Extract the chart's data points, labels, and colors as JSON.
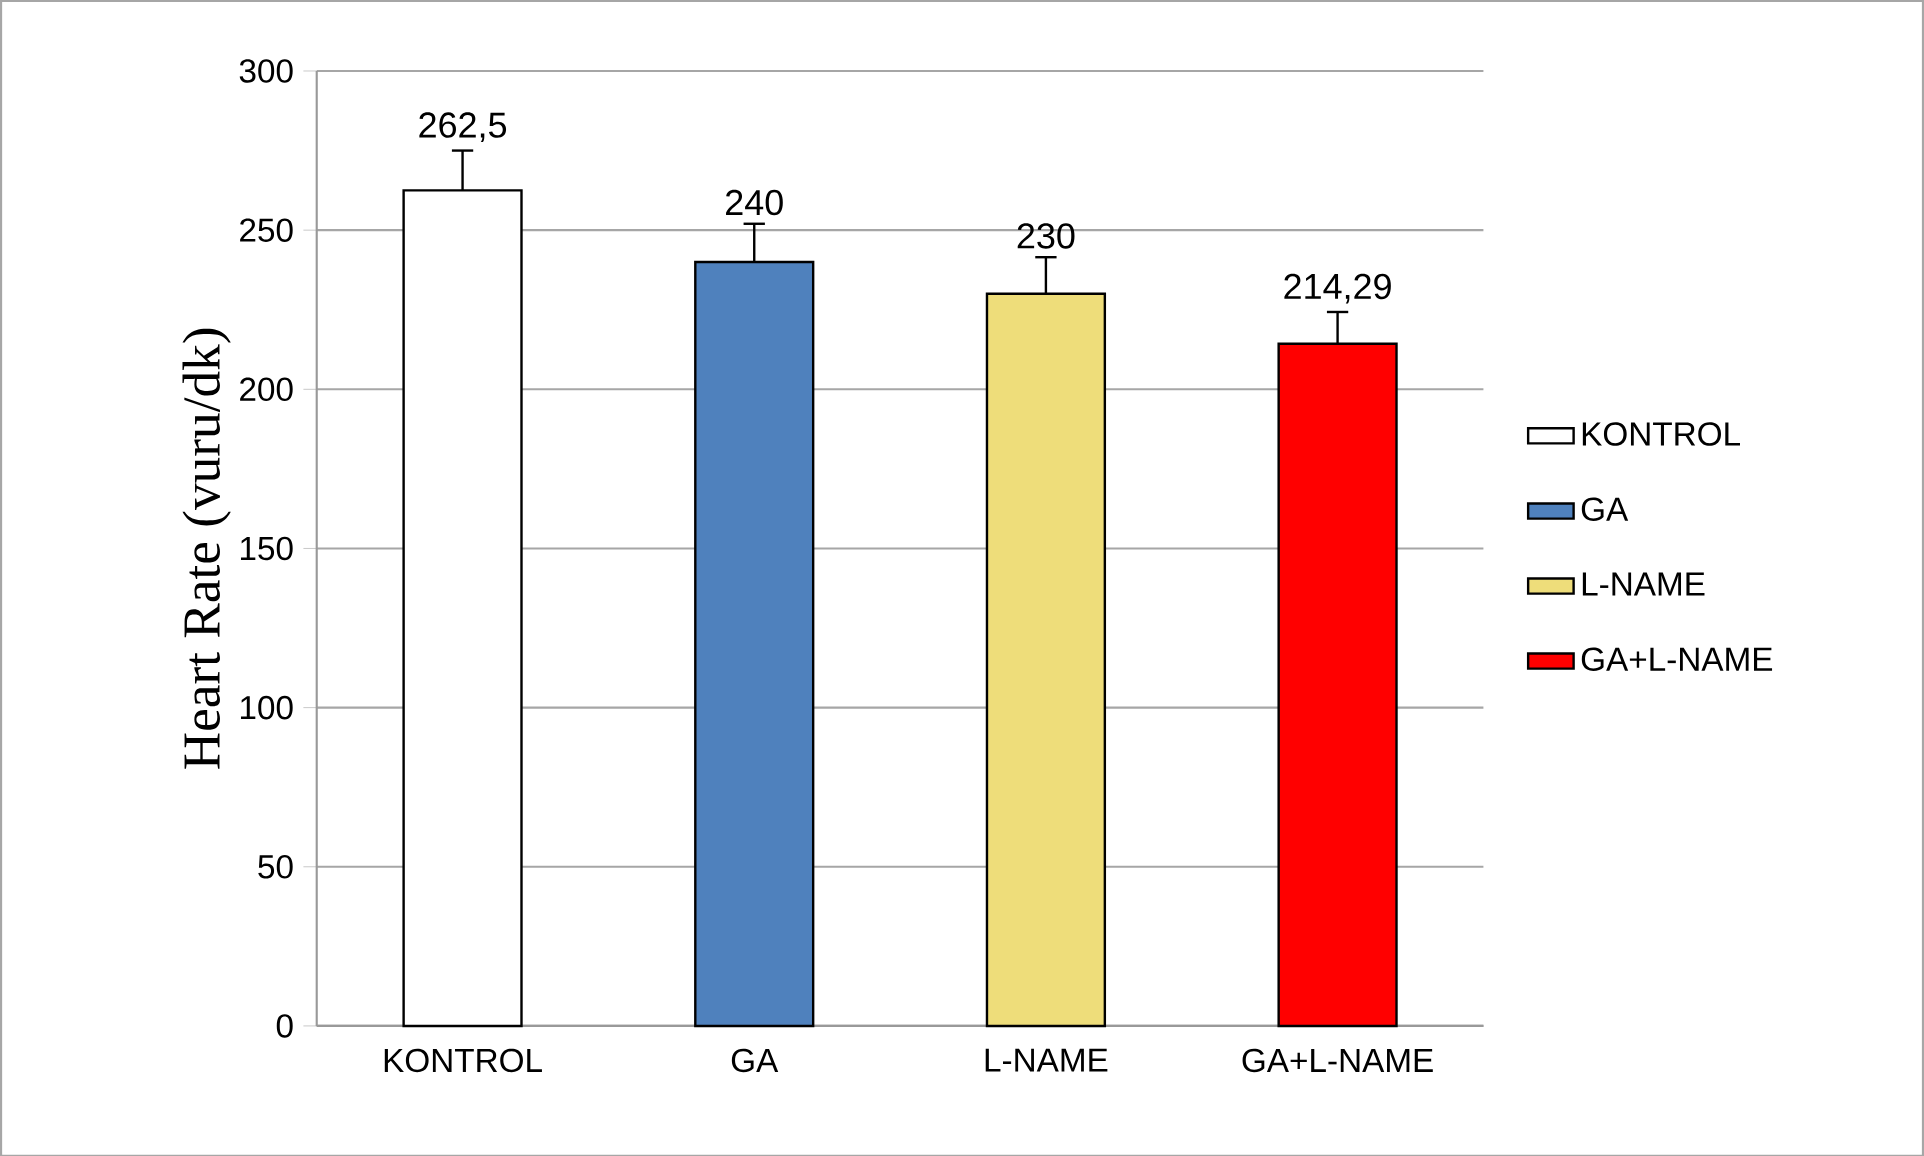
{
  "chart_data": {
    "type": "bar",
    "ylabel": "Heart Rate (vuru/dk)",
    "categories": [
      "KONTROL",
      "GA",
      "L-NAME",
      "GA+L-NAME"
    ],
    "series": [
      {
        "name": "KONTROL",
        "color": "#ffffff",
        "values": [
          262.5,
          null,
          null,
          null
        ],
        "errors": [
          12.5,
          null,
          null,
          null
        ],
        "value_labels": [
          "262,5",
          null,
          null,
          null
        ]
      },
      {
        "name": "GA",
        "color": "#4f81bd",
        "values": [
          null,
          240,
          null,
          null
        ],
        "errors": [
          null,
          12,
          null,
          null
        ],
        "value_labels": [
          null,
          "240",
          null,
          null
        ]
      },
      {
        "name": "L-NAME",
        "color": "#eedd7a",
        "values": [
          null,
          null,
          230,
          null
        ],
        "errors": [
          null,
          null,
          11.5,
          null
        ],
        "value_labels": [
          null,
          null,
          "230",
          null
        ]
      },
      {
        "name": "GA+L-NAME",
        "color": "#ff0000",
        "values": [
          null,
          null,
          null,
          214.29
        ],
        "errors": [
          null,
          null,
          null,
          10
        ],
        "value_labels": [
          null,
          null,
          null,
          "214,29"
        ]
      }
    ],
    "ylim": [
      0,
      300
    ],
    "yticks": [
      0,
      50,
      100,
      150,
      200,
      250,
      300
    ],
    "grid": "y",
    "legend": "right"
  }
}
